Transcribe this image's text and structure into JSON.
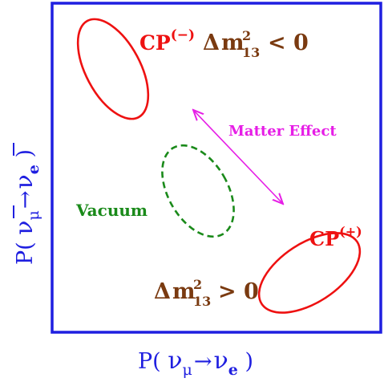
{
  "axes": {
    "x_label": {
      "pre": "P( ",
      "nu_mu": "ν",
      "mu_sub": "μ",
      "arrow": "→",
      "nu_e": "ν",
      "e_sub": "e",
      "post": " )"
    },
    "y_label": {
      "pre": "P( ",
      "nu_mu": "ν",
      "mu_sub": "μ",
      "arrow": "→",
      "nu_e": "ν",
      "e_sub": "e",
      "post": " )"
    }
  },
  "labels": {
    "cp_minus": {
      "base": "CP",
      "sup": "(−)"
    },
    "cp_plus": {
      "base": "CP",
      "sup": "(+)"
    },
    "dm_negative": {
      "delta": "Δ",
      "m": "m",
      "sup": "2",
      "sub": "13",
      "rel": "< 0"
    },
    "dm_positive": {
      "delta": "Δ",
      "m": "m",
      "sup": "2",
      "sub": "13",
      "rel": "> 0"
    },
    "vacuum": "Vacuum",
    "matter_effect": "Matter Effect"
  },
  "colors": {
    "frame": "#1f1fe0",
    "cp_ellipse": "#ee1111",
    "vacuum_ellipse": "#1a8a1a",
    "matter_arrow": "#e61ee6",
    "mass_label": "#7a3a10"
  }
}
